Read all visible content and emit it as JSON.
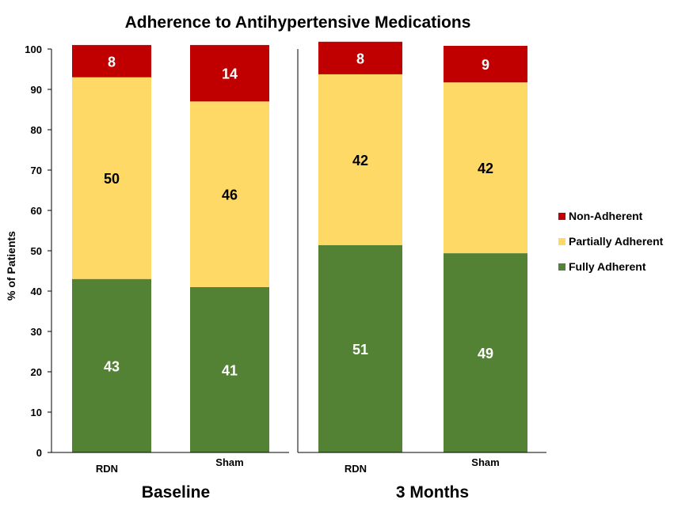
{
  "chart_data": {
    "type": "bar",
    "stacked": true,
    "title": "Adherence to Antihypertensive Medications",
    "ylabel": "% of Patients",
    "ylim": [
      0,
      100
    ],
    "yticks": [
      "0",
      "10",
      "20",
      "30",
      "40",
      "50",
      "60",
      "70",
      "80",
      "90",
      "100"
    ],
    "groups": [
      "Baseline",
      "3 Months"
    ],
    "categories": [
      "RDN",
      "Sham",
      "RDN",
      "Sham"
    ],
    "category_group": [
      0,
      0,
      1,
      1
    ],
    "series": [
      {
        "name": "Fully Adherent",
        "color": "#548235",
        "label_color": "#ffffff",
        "values": [
          43,
          41,
          51,
          49
        ]
      },
      {
        "name": "Partially Adherent",
        "color": "#ffd966",
        "label_color": "#000000",
        "values": [
          50,
          46,
          42,
          42
        ]
      },
      {
        "name": "Non-Adherent",
        "color": "#c00000",
        "label_color": "#ffffff",
        "values": [
          8,
          14,
          8,
          9
        ]
      }
    ],
    "legend_position": "right",
    "legend_order": [
      "Non-Adherent",
      "Partially Adherent",
      "Fully Adherent"
    ],
    "grid": false
  }
}
